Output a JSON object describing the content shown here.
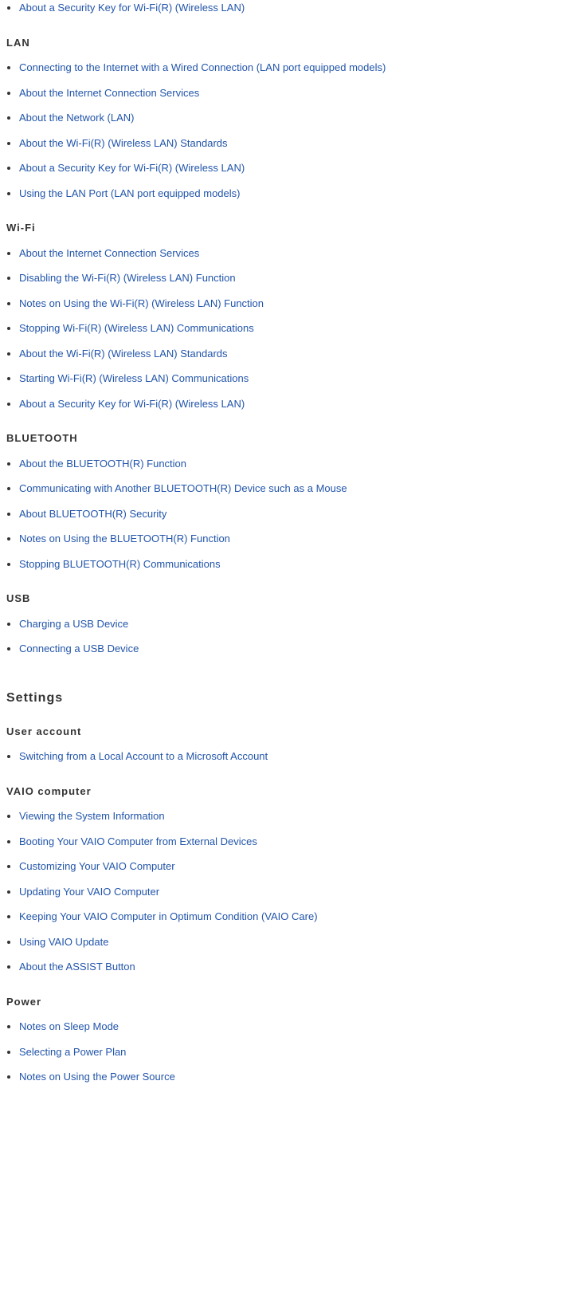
{
  "top_orphan_link": "About a Security Key for Wi-Fi(R) (Wireless LAN)",
  "sections": [
    {
      "heading": "LAN",
      "heading_level": "h3",
      "links": [
        "Connecting to the Internet with a Wired Connection (LAN port equipped models)",
        "About the Internet Connection Services",
        "About the Network (LAN)",
        "About the Wi-Fi(R) (Wireless LAN) Standards",
        "About a Security Key for Wi-Fi(R) (Wireless LAN)",
        "Using the LAN Port (LAN port equipped models)"
      ]
    },
    {
      "heading": "Wi-Fi",
      "heading_level": "h3",
      "links": [
        "About the Internet Connection Services",
        "Disabling the Wi-Fi(R) (Wireless LAN) Function",
        "Notes on Using the Wi-Fi(R) (Wireless LAN) Function",
        "Stopping Wi-Fi(R) (Wireless LAN) Communications",
        "About the Wi-Fi(R) (Wireless LAN) Standards",
        "Starting Wi-Fi(R) (Wireless LAN) Communications",
        "About a Security Key for Wi-Fi(R) (Wireless LAN)"
      ]
    },
    {
      "heading": "BLUETOOTH",
      "heading_level": "h3",
      "links": [
        "About the BLUETOOTH(R) Function",
        "Communicating with Another BLUETOOTH(R) Device such as a Mouse",
        "About BLUETOOTH(R) Security",
        "Notes on Using the BLUETOOTH(R) Function",
        "Stopping BLUETOOTH(R) Communications"
      ]
    },
    {
      "heading": "USB",
      "heading_level": "h3",
      "links": [
        "Charging a USB Device",
        "Connecting a USB Device"
      ]
    }
  ],
  "settings_title": "Settings",
  "settings_sections": [
    {
      "heading": "User account",
      "links": [
        "Switching from a Local Account to a Microsoft Account"
      ]
    },
    {
      "heading": "VAIO computer",
      "links": [
        "Viewing the System Information",
        "Booting Your VAIO Computer from External Devices",
        "Customizing Your VAIO Computer",
        "Updating Your VAIO Computer",
        "Keeping Your VAIO Computer in Optimum Condition (VAIO Care)",
        "Using VAIO Update",
        "About the ASSIST Button"
      ]
    },
    {
      "heading": "Power",
      "links": [
        "Notes on Sleep Mode",
        "Selecting a Power Plan",
        "Notes on Using the Power Source"
      ]
    }
  ]
}
